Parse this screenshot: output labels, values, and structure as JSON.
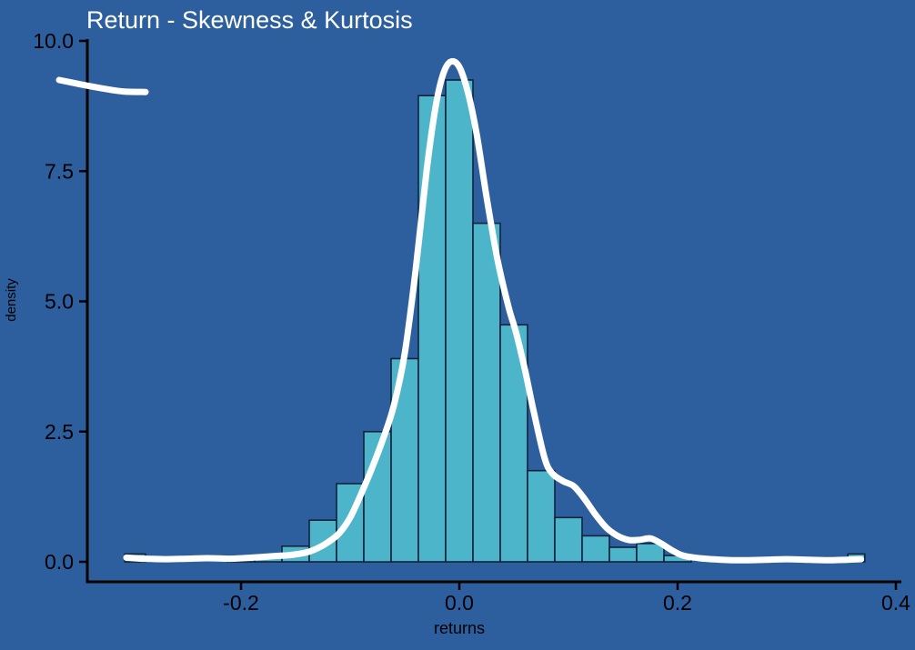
{
  "colors": {
    "background": "#2d5f9e",
    "bar_fill": "#4db5c9",
    "bar_stroke": "#14213d",
    "curve": "#ffffff",
    "axis": "#000000",
    "title_text": "#ffffff",
    "tick_text": "#000000"
  },
  "chart_data": {
    "type": "bar",
    "subtype": "histogram-with-density-curve",
    "title": "Return - Skewness & Kurtosis",
    "xlabel": "returns",
    "ylabel": "density",
    "xlim": [
      -0.342,
      0.405
    ],
    "ylim": [
      0,
      10
    ],
    "grid": false,
    "legend": "none",
    "xticks": [
      -0.2,
      0.0,
      0.2,
      0.4
    ],
    "xtick_labels": [
      "-0.2",
      "0.0",
      "0.2",
      "0.4"
    ],
    "yticks": [
      0,
      2.5,
      5,
      7.5,
      10
    ],
    "ytick_labels": [
      "0.0",
      "2.5",
      "5.0",
      "7.5",
      "10.0"
    ],
    "bin_width": 0.025,
    "bars": [
      {
        "x0": -0.3065,
        "x1": -0.2875,
        "h": 0.15
      },
      {
        "x0": -0.2125,
        "x1": -0.1875,
        "h": 0.06
      },
      {
        "x0": -0.1875,
        "x1": -0.1625,
        "h": 0.12
      },
      {
        "x0": -0.1625,
        "x1": -0.1375,
        "h": 0.3
      },
      {
        "x0": -0.1375,
        "x1": -0.1125,
        "h": 0.8
      },
      {
        "x0": -0.1125,
        "x1": -0.0875,
        "h": 1.5
      },
      {
        "x0": -0.0875,
        "x1": -0.0625,
        "h": 2.5
      },
      {
        "x0": -0.0625,
        "x1": -0.0375,
        "h": 3.9
      },
      {
        "x0": -0.0375,
        "x1": -0.0125,
        "h": 8.95
      },
      {
        "x0": -0.0125,
        "x1": 0.0125,
        "h": 9.25
      },
      {
        "x0": 0.0125,
        "x1": 0.0375,
        "h": 6.5
      },
      {
        "x0": 0.0375,
        "x1": 0.0625,
        "h": 4.55
      },
      {
        "x0": 0.0625,
        "x1": 0.0875,
        "h": 1.75
      },
      {
        "x0": 0.0875,
        "x1": 0.1125,
        "h": 0.85
      },
      {
        "x0": 0.1125,
        "x1": 0.1375,
        "h": 0.5
      },
      {
        "x0": 0.1375,
        "x1": 0.1625,
        "h": 0.28
      },
      {
        "x0": 0.1625,
        "x1": 0.1875,
        "h": 0.35
      },
      {
        "x0": 0.1875,
        "x1": 0.2125,
        "h": 0.12
      },
      {
        "x0": 0.356,
        "x1": 0.3715,
        "h": 0.15
      }
    ],
    "density": [
      [
        -0.305,
        0.08
      ],
      [
        -0.29,
        0.06
      ],
      [
        -0.27,
        0.05
      ],
      [
        -0.25,
        0.06
      ],
      [
        -0.23,
        0.07
      ],
      [
        -0.21,
        0.06
      ],
      [
        -0.19,
        0.08
      ],
      [
        -0.17,
        0.11
      ],
      [
        -0.155,
        0.13
      ],
      [
        -0.14,
        0.18
      ],
      [
        -0.13,
        0.26
      ],
      [
        -0.12,
        0.38
      ],
      [
        -0.11,
        0.55
      ],
      [
        -0.1,
        0.85
      ],
      [
        -0.09,
        1.3
      ],
      [
        -0.08,
        1.8
      ],
      [
        -0.07,
        2.35
      ],
      [
        -0.06,
        3.0
      ],
      [
        -0.05,
        4.0
      ],
      [
        -0.04,
        5.6
      ],
      [
        -0.03,
        7.5
      ],
      [
        -0.022,
        8.7
      ],
      [
        -0.015,
        9.35
      ],
      [
        -0.008,
        9.6
      ],
      [
        0.0,
        9.5
      ],
      [
        0.008,
        9.0
      ],
      [
        0.016,
        8.2
      ],
      [
        0.025,
        7.0
      ],
      [
        0.035,
        5.8
      ],
      [
        0.045,
        4.9
      ],
      [
        0.052,
        4.4
      ],
      [
        0.06,
        3.7
      ],
      [
        0.068,
        2.9
      ],
      [
        0.078,
        2.0
      ],
      [
        0.085,
        1.7
      ],
      [
        0.095,
        1.55
      ],
      [
        0.105,
        1.45
      ],
      [
        0.115,
        1.2
      ],
      [
        0.125,
        0.9
      ],
      [
        0.135,
        0.65
      ],
      [
        0.145,
        0.5
      ],
      [
        0.155,
        0.42
      ],
      [
        0.165,
        0.42
      ],
      [
        0.175,
        0.45
      ],
      [
        0.185,
        0.35
      ],
      [
        0.195,
        0.22
      ],
      [
        0.205,
        0.12
      ],
      [
        0.22,
        0.07
      ],
      [
        0.24,
        0.04
      ],
      [
        0.26,
        0.03
      ],
      [
        0.28,
        0.04
      ],
      [
        0.3,
        0.05
      ],
      [
        0.32,
        0.04
      ],
      [
        0.34,
        0.03
      ],
      [
        0.355,
        0.04
      ],
      [
        0.368,
        0.05
      ]
    ],
    "stray_segment": [
      [
        -0.3667,
        9.25
      ],
      [
        -0.348,
        9.17
      ],
      [
        -0.328,
        9.09
      ],
      [
        -0.308,
        9.03
      ],
      [
        -0.2875,
        9.02
      ]
    ]
  }
}
